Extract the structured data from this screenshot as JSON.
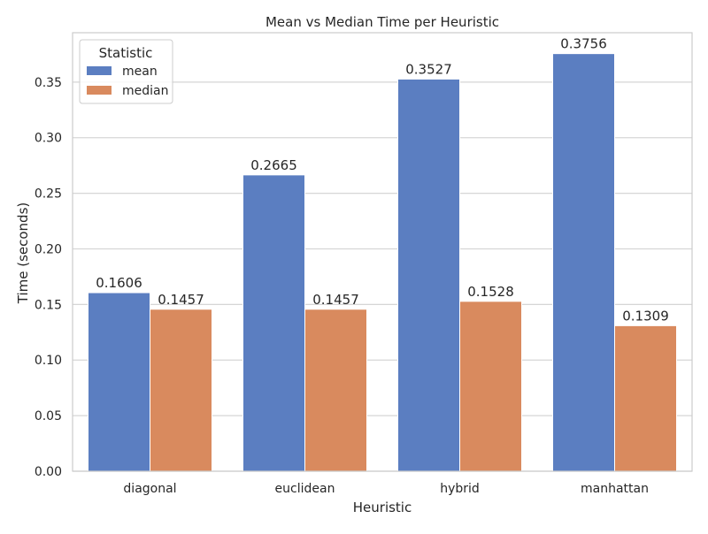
{
  "chart_data": {
    "type": "bar",
    "title": "Mean vs Median Time per Heuristic",
    "xlabel": "Heuristic",
    "ylabel": "Time (seconds)",
    "categories": [
      "diagonal",
      "euclidean",
      "hybrid",
      "manhattan"
    ],
    "series": [
      {
        "name": "mean",
        "values": [
          0.1606,
          0.2665,
          0.3527,
          0.3756
        ],
        "labels": [
          "0.1606",
          "0.2665",
          "0.3527",
          "0.3756"
        ],
        "color": "#5b7ec1"
      },
      {
        "name": "median",
        "values": [
          0.1457,
          0.1457,
          0.1528,
          0.1309
        ],
        "labels": [
          "0.1457",
          "0.1457",
          "0.1528",
          "0.1309"
        ],
        "color": "#d98a5e"
      }
    ],
    "ylim": [
      0,
      0.3944
    ],
    "yticks": [
      0,
      0.05,
      0.1,
      0.15,
      0.2,
      0.25,
      0.3,
      0.35
    ],
    "ytick_labels": [
      "0.00",
      "0.05",
      "0.10",
      "0.15",
      "0.20",
      "0.25",
      "0.30",
      "0.35"
    ],
    "grid": "horizontal",
    "legend": {
      "title": "Statistic",
      "placement": "top-left"
    }
  }
}
